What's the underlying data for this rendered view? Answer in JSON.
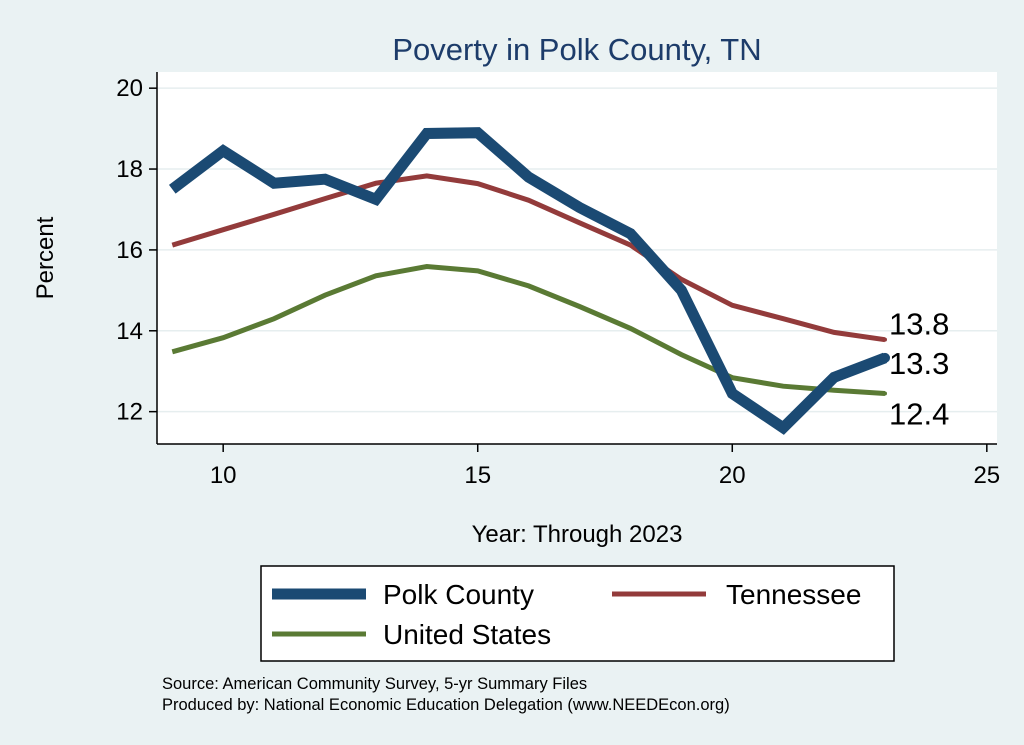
{
  "chart_data": {
    "type": "line",
    "title": "Poverty in Polk County, TN",
    "xlabel": "Year: Through 2023",
    "ylabel": "Percent",
    "xlim": [
      8.7,
      25.2
    ],
    "ylim": [
      11.2,
      20.4
    ],
    "xticks": [
      10,
      15,
      20,
      25
    ],
    "yticks": [
      12,
      14,
      16,
      18,
      20
    ],
    "grid": true,
    "legend_position": "bottom",
    "x": [
      9,
      10,
      11,
      12,
      13,
      14,
      15,
      16,
      17,
      18,
      19,
      20,
      21,
      22,
      23
    ],
    "series": [
      {
        "name": "Polk County",
        "color": "#1b4a73",
        "values": [
          17.5,
          18.45,
          17.65,
          17.75,
          17.25,
          18.88,
          18.9,
          17.8,
          17.05,
          16.4,
          15.0,
          12.45,
          11.6,
          12.85,
          13.33
        ],
        "end_label": "13.3"
      },
      {
        "name": "Tennessee",
        "color": "#933b3b",
        "values": [
          16.12,
          16.5,
          16.88,
          17.27,
          17.65,
          17.83,
          17.64,
          17.23,
          16.67,
          16.12,
          15.27,
          14.63,
          14.3,
          13.96,
          13.78
        ],
        "end_label": "13.8"
      },
      {
        "name": "United States",
        "color": "#5a7a34",
        "values": [
          13.48,
          13.83,
          14.3,
          14.88,
          15.36,
          15.59,
          15.48,
          15.11,
          14.6,
          14.06,
          13.41,
          12.84,
          12.63,
          12.53,
          12.45
        ],
        "end_label": "12.4"
      }
    ],
    "notes": [
      "Source: American Community Survey, 5-yr Summary Files",
      "Produced by: National Economic Education Delegation (www.NEEDEcon.org)"
    ]
  }
}
